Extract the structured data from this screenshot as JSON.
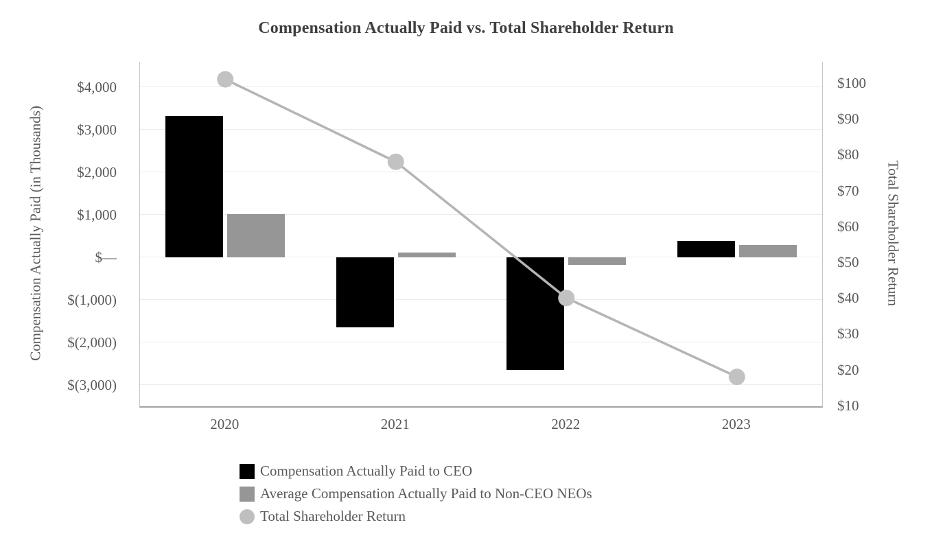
{
  "title": "Compensation Actually Paid vs. Total Shareholder Return",
  "left_axis": {
    "label": "Compensation Actually Paid (in Thousands)",
    "ticks": [
      "$4,000",
      "$3,000",
      "$2,000",
      "$1,000",
      "$—",
      "$(1,000)",
      "$(2,000)",
      "$(3,000)"
    ]
  },
  "right_axis": {
    "label": "Total Shareholder Return",
    "ticks": [
      "$100",
      "$90",
      "$80",
      "$70",
      "$60",
      "$50",
      "$40",
      "$30",
      "$20",
      "$10"
    ]
  },
  "legend": [
    {
      "label": "Compensation Actually Paid to CEO",
      "shape": "square",
      "color": "#000000"
    },
    {
      "label": "Average Compensation Actually Paid to Non-CEO NEOs",
      "shape": "square",
      "color": "#969696"
    },
    {
      "label": "Total Shareholder Return",
      "shape": "circle",
      "color": "#bfbfbf"
    }
  ],
  "chart_data": {
    "type": "combo",
    "categories": [
      "2020",
      "2021",
      "2022",
      "2023"
    ],
    "series": [
      {
        "name": "Compensation Actually Paid to CEO",
        "type": "bar",
        "axis": "left",
        "color": "#000000",
        "values": [
          3330,
          -1650,
          -2640,
          385
        ]
      },
      {
        "name": "Average Compensation Actually Paid to Non-CEO NEOs",
        "type": "bar",
        "axis": "left",
        "color": "#969696",
        "values": [
          1020,
          120,
          -170,
          290
        ]
      },
      {
        "name": "Total Shareholder Return",
        "type": "line",
        "axis": "right",
        "color": "#b5b5b5",
        "marker_color": "#c2c2c2",
        "values": [
          101,
          78,
          40,
          18
        ]
      }
    ],
    "left_tick_values": [
      4000,
      3000,
      2000,
      1000,
      0,
      -1000,
      -2000,
      -3000
    ],
    "right_tick_values": [
      100,
      90,
      80,
      70,
      60,
      50,
      40,
      30,
      20,
      10
    ],
    "left_ylim": [
      -3500,
      4600
    ],
    "right_ylim": [
      9.8,
      105.9
    ],
    "grid": true,
    "legend_position": "bottom-left"
  }
}
